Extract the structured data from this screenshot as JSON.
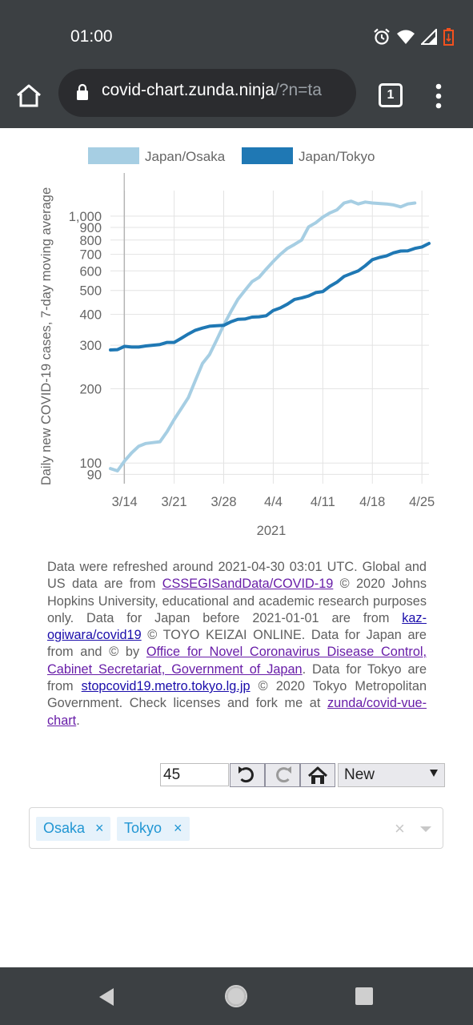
{
  "status_bar": {
    "time": "01:00"
  },
  "browser": {
    "url_main": "covid-chart.zunda.ninja",
    "url_rest": "/?n=ta",
    "tab_count": "1"
  },
  "chart_data": {
    "type": "line",
    "ylabel": "Daily new COVID-19 cases, 7-day moving average",
    "xlabel": "2021",
    "y_scale": "log",
    "ylim": [
      85,
      1250
    ],
    "x_range": [
      "2021-03-12",
      "2021-04-26"
    ],
    "x_tick_labels": [
      "3/14",
      "3/21",
      "3/28",
      "4/4",
      "4/11",
      "4/18",
      "4/25"
    ],
    "y_tick_labels": [
      "90",
      "100",
      "200",
      "300",
      "400",
      "500",
      "600",
      "700",
      "800",
      "900",
      "1,000"
    ],
    "y_tick_values": [
      90,
      100,
      200,
      300,
      400,
      500,
      600,
      700,
      800,
      900,
      1000
    ],
    "legend_position": "top",
    "series": [
      {
        "name": "Japan/Osaka",
        "color": "#a6cee3",
        "x": [
          "2021-03-12",
          "2021-03-13",
          "2021-03-14",
          "2021-03-15",
          "2021-03-16",
          "2021-03-17",
          "2021-03-18",
          "2021-03-19",
          "2021-03-20",
          "2021-03-21",
          "2021-03-22",
          "2021-03-23",
          "2021-03-24",
          "2021-03-25",
          "2021-03-26",
          "2021-03-27",
          "2021-03-28",
          "2021-03-29",
          "2021-03-30",
          "2021-03-31",
          "2021-04-01",
          "2021-04-02",
          "2021-04-03",
          "2021-04-04",
          "2021-04-05",
          "2021-04-06",
          "2021-04-07",
          "2021-04-08",
          "2021-04-09",
          "2021-04-10",
          "2021-04-11",
          "2021-04-12",
          "2021-04-13",
          "2021-04-14",
          "2021-04-15",
          "2021-04-16",
          "2021-04-17",
          "2021-04-18",
          "2021-04-19",
          "2021-04-20",
          "2021-04-21",
          "2021-04-22",
          "2021-04-23",
          "2021-04-24"
        ],
        "y": [
          95,
          93,
          102,
          110,
          117,
          120,
          121,
          122,
          134,
          150,
          166,
          184,
          216,
          253,
          275,
          315,
          362,
          410,
          460,
          500,
          543,
          565,
          610,
          655,
          700,
          740,
          768,
          800,
          905,
          940,
          990,
          1030,
          1060,
          1130,
          1150,
          1120,
          1140,
          1130,
          1125,
          1120,
          1110,
          1090,
          1120,
          1130
        ]
      },
      {
        "name": "Japan/Tokyo",
        "color": "#1f78b4",
        "x": [
          "2021-03-12",
          "2021-03-13",
          "2021-03-14",
          "2021-03-15",
          "2021-03-16",
          "2021-03-17",
          "2021-03-18",
          "2021-03-19",
          "2021-03-20",
          "2021-03-21",
          "2021-03-22",
          "2021-03-23",
          "2021-03-24",
          "2021-03-25",
          "2021-03-26",
          "2021-03-27",
          "2021-03-28",
          "2021-03-29",
          "2021-03-30",
          "2021-03-31",
          "2021-04-01",
          "2021-04-02",
          "2021-04-03",
          "2021-04-04",
          "2021-04-05",
          "2021-04-06",
          "2021-04-07",
          "2021-04-08",
          "2021-04-09",
          "2021-04-10",
          "2021-04-11",
          "2021-04-12",
          "2021-04-13",
          "2021-04-14",
          "2021-04-15",
          "2021-04-16",
          "2021-04-17",
          "2021-04-18",
          "2021-04-19",
          "2021-04-20",
          "2021-04-21",
          "2021-04-22",
          "2021-04-23",
          "2021-04-24",
          "2021-04-25",
          "2021-04-26"
        ],
        "y": [
          287,
          288,
          297,
          295,
          295,
          298,
          300,
          302,
          308,
          308,
          320,
          333,
          345,
          352,
          358,
          360,
          361,
          373,
          382,
          383,
          390,
          391,
          395,
          415,
          425,
          440,
          460,
          466,
          475,
          490,
          495,
          520,
          540,
          570,
          585,
          600,
          630,
          666,
          680,
          690,
          710,
          722,
          723,
          740,
          750,
          775
        ]
      }
    ]
  },
  "description": {
    "p1": "Data were refreshed around 2021-04-30 03:01 UTC. Global and US data are from ",
    "link1": "CSSEGISandData/COVID-19",
    "p2": " © 2020 Johns Hopkins University, educational and academic research purposes only. Data for Japan before 2021-01-01 are from ",
    "link2": "kaz-ogiwara/covid19",
    "p3": " © TOYO KEIZAI ONLINE. Data for Japan are from and © by ",
    "link3": "Office for Novel Coronavirus Disease Control, Cabinet Secretariat, Government of Japan",
    "p4": ". Data for Tokyo are from ",
    "link4": "stopcovid19.metro.tokyo.lg.jp",
    "p5": " © 2020 Tokyo Metropolitan Government. Check licenses and fork me at ",
    "link5": "zunda/covid-vue-chart",
    "p6": "."
  },
  "controls": {
    "days_value": "45",
    "sort_selected": "New"
  },
  "selector": {
    "tags": [
      {
        "label": "Osaka",
        "remove": "×"
      },
      {
        "label": "Tokyo",
        "remove": "×"
      }
    ],
    "clear": "×"
  }
}
